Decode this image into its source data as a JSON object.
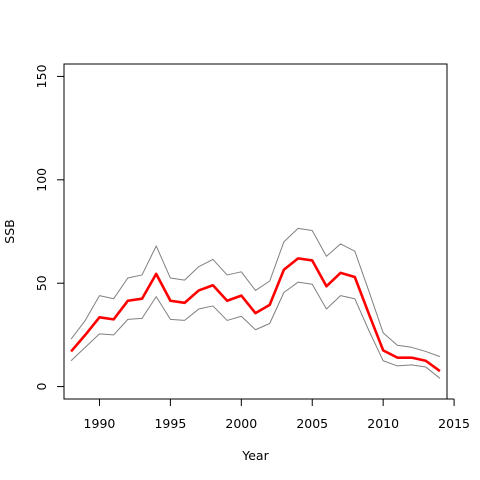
{
  "chart_data": {
    "type": "line",
    "title": "",
    "xlabel": "Year",
    "ylabel": "SSB",
    "xlim": [
      1987.5,
      2014.5
    ],
    "ylim": [
      -6,
      156
    ],
    "xticks": [
      1990,
      1995,
      2000,
      2005,
      2010,
      2015
    ],
    "yticks": [
      0,
      50,
      100,
      150
    ],
    "grid": false,
    "legend": "none",
    "x": [
      1988,
      1989,
      1990,
      1991,
      1992,
      1993,
      1994,
      1995,
      1996,
      1997,
      1998,
      1999,
      2000,
      2001,
      2002,
      2003,
      2004,
      2005,
      2006,
      2007,
      2008,
      2009,
      2010,
      2011,
      2012,
      2013,
      2014
    ],
    "series": [
      {
        "role": "estimate",
        "color": "#ff0000",
        "values": [
          17,
          25,
          33.5,
          32.5,
          41.5,
          42.5,
          54.5,
          41.5,
          40.5,
          46.5,
          49,
          41.5,
          44,
          35.5,
          39.5,
          56.5,
          62,
          61,
          48.5,
          55,
          53,
          35,
          17.5,
          14,
          14,
          12.5,
          7.5
        ]
      },
      {
        "role": "upper-bound",
        "color": "#808080",
        "values": [
          23,
          32,
          44,
          42.5,
          52.5,
          54,
          68,
          52.5,
          51.5,
          58,
          61.5,
          54,
          55.5,
          46.5,
          51,
          70,
          76.5,
          75.5,
          63,
          69,
          65.5,
          46,
          26,
          20,
          19,
          17,
          14.5
        ]
      },
      {
        "role": "lower-bound",
        "color": "#808080",
        "values": [
          12.5,
          19,
          25.5,
          25,
          32.5,
          33,
          43.5,
          32.5,
          32,
          37.5,
          39,
          32,
          34,
          27.5,
          30.5,
          45.5,
          50.5,
          49.5,
          37.5,
          44,
          42.5,
          27,
          12.5,
          10,
          10.5,
          9.5,
          4
        ]
      }
    ]
  }
}
